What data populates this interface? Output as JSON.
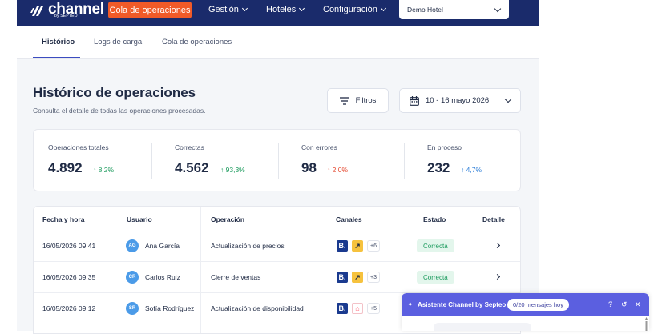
{
  "brand": {
    "name": "channel",
    "by": "by SEPTEO"
  },
  "topbar": {
    "cta": "Cola de operaciones",
    "nav": [
      "Gestión",
      "Hoteles",
      "Configuración"
    ],
    "hotel": "Demo Hotel"
  },
  "tabs": [
    "Histórico",
    "Logs de carga",
    "Cola de operaciones"
  ],
  "page": {
    "title": "Histórico de operaciones",
    "subtitle": "Consulta el detalle de todas las operaciones procesadas.",
    "filters_label": "Filtros",
    "date_range": "10 - 16 mayo 2026"
  },
  "stats": [
    {
      "label": "Operaciones totales",
      "value": "4.892",
      "delta": "8,2%",
      "trend": "up",
      "color": "#1a9a5c"
    },
    {
      "label": "Correctas",
      "value": "4.562",
      "delta": "93,3%",
      "trend": "up",
      "color": "#1a9a5c"
    },
    {
      "label": "Con errores",
      "value": "98",
      "delta": "2,0%",
      "trend": "up",
      "color": "#e5482f"
    },
    {
      "label": "En proceso",
      "value": "232",
      "delta": "4,7%",
      "trend": "up",
      "color": "#2f7fd8"
    }
  ],
  "table": {
    "headers": [
      "Fecha y hora",
      "Usuario",
      "Operación",
      "Canales",
      "Estado",
      "Detalle"
    ],
    "rows": [
      {
        "datetime": "16/05/2026 09:41",
        "initials": "AG",
        "user": "Ana García",
        "operation": "Actualización de precios",
        "channels": [
          "booking-icon",
          "expedia-icon"
        ],
        "more": "+6",
        "status": "Correcta",
        "avatar_color": "#4b9be8"
      },
      {
        "datetime": "16/05/2026 09:35",
        "initials": "CR",
        "user": "Carlos Ruiz",
        "operation": "Cierre de ventas",
        "channels": [
          "booking-icon",
          "expedia-icon"
        ],
        "more": "+3",
        "status": "Correcta",
        "avatar_color": "#4b9be8"
      },
      {
        "datetime": "16/05/2026 09:12",
        "initials": "SR",
        "user": "Sofía Rodríguez",
        "operation": "Actualización de disponibilidad",
        "channels": [
          "booking-icon",
          "airbnb-icon"
        ],
        "more": "+5",
        "status": "",
        "avatar_color": "#4b9be8"
      }
    ]
  },
  "assistant": {
    "title": "Asistente Channel by Septeo",
    "counter": "0/20 mensajes hoy"
  }
}
